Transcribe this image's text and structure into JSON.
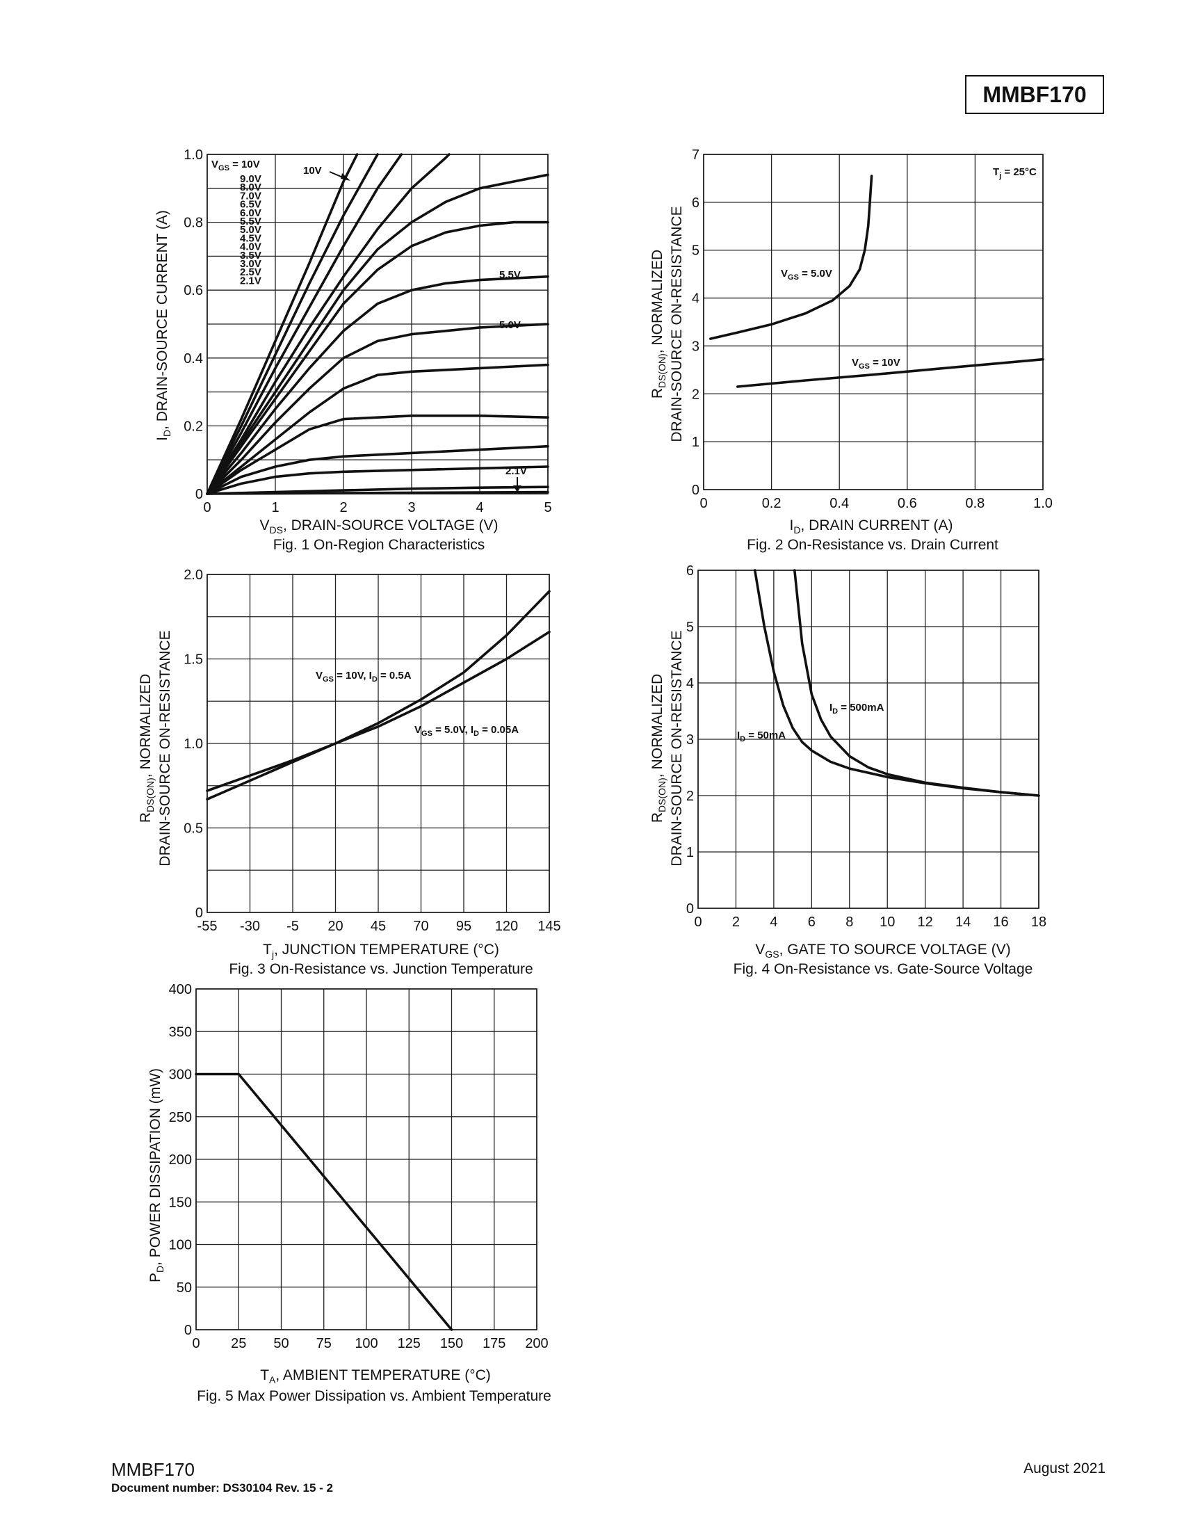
{
  "header": {
    "part_number": "MMBF170"
  },
  "footer": {
    "part_number": "MMBF170",
    "document_number": "Document number: DS30104 Rev. 15 - 2",
    "date": "August 2021"
  },
  "figures": {
    "fig1": {
      "caption": "Fig. 1  On-Region Characteristics",
      "xlabel_main": "V",
      "xlabel_sub": "DS",
      "xlabel_rest": ", DRAIN-SOURCE VOLTAGE (V)",
      "ylabel_main": "I",
      "ylabel_sub": "D",
      "ylabel_rest": ", DRAIN-SOURCE CURRENT (A)",
      "vgs_label_main": "V",
      "vgs_label_sub": "GS",
      "vgs_label_rest": " = 10V",
      "vgs_list": [
        "9.0V",
        "8.0V",
        "7.0V",
        "6.5V",
        "6.0V",
        "5.5V",
        "5.0V",
        "4.5V",
        "4.0V",
        "3.5V",
        "3.0V",
        "2.5V",
        "2.1V"
      ],
      "callout_10v": "10V",
      "callout_55v": "5.5V",
      "callout_50v": "5.0V",
      "callout_21v": "2.1V"
    },
    "fig2": {
      "caption": "Fig. 2  On-Resistance vs. Drain Current",
      "xlabel_main": "I",
      "xlabel_sub": "D",
      "xlabel_rest": ", DRAIN CURRENT (A)",
      "ylabel_line1_main": "R",
      "ylabel_line1_sub": "DS(ON)",
      "ylabel_line1_rest": ", NORMALIZED",
      "ylabel_line2": "DRAIN-SOURCE ON-RESISTANCE",
      "tj_main": "T",
      "tj_sub": "j",
      "tj_rest": " = 25°C",
      "label_5v_main": "V",
      "label_5v_sub": "GS",
      "label_5v_rest": " = 5.0V",
      "label_10v_main": "V",
      "label_10v_sub": "GS",
      "label_10v_rest": " = 10V"
    },
    "fig3": {
      "caption": "Fig. 3  On-Resistance vs. Junction Temperature",
      "xlabel_main": "T",
      "xlabel_sub": "j",
      "xlabel_rest": ", JUNCTION TEMPERATURE (°C)",
      "ylabel_line1_main": "R",
      "ylabel_line1_sub": "DS(ON)",
      "ylabel_line1_rest": ", NORMALIZED",
      "ylabel_line2": "DRAIN-SOURCE ON-RESISTANCE",
      "label_a_main": "V",
      "label_a_sub": "GS",
      "label_a_mid": " = 10V, I",
      "label_a_sub2": "D",
      "label_a_rest": " = 0.5A",
      "label_b_main": "V",
      "label_b_sub": "GS",
      "label_b_mid": " = 5.0V, I",
      "label_b_sub2": "D",
      "label_b_rest": " = 0.05A"
    },
    "fig4": {
      "caption": "Fig. 4  On-Resistance vs. Gate-Source Voltage",
      "xlabel_main": "V",
      "xlabel_sub": "GS",
      "xlabel_rest": ", GATE TO SOURCE VOLTAGE (V)",
      "ylabel_line1_main": "R",
      "ylabel_line1_sub": "DS(ON)",
      "ylabel_line1_rest": ", NORMALIZED",
      "ylabel_line2": "DRAIN-SOURCE ON-RESISTANCE",
      "label_500_main": "I",
      "label_500_sub": "D",
      "label_500_rest": " = 500mA",
      "label_50_main": "I",
      "label_50_sub": "D",
      "label_50_rest": " = 50mA"
    },
    "fig5": {
      "caption": "Fig. 5 Max Power Dissipation vs. Ambient Temperature",
      "xlabel_main": "T",
      "xlabel_sub": "A",
      "xlabel_rest": ", AMBIENT TEMPERATURE (°C)",
      "ylabel_main": "P",
      "ylabel_sub": "D",
      "ylabel_rest": ", POWER DISSIPATION (mW)"
    }
  },
  "chart_data": [
    {
      "id": "fig1",
      "type": "line",
      "title": "Fig. 1  On-Region Characteristics",
      "xlabel": "VDS, DRAIN-SOURCE VOLTAGE (V)",
      "ylabel": "ID, DRAIN-SOURCE CURRENT (A)",
      "xlim": [
        0,
        5
      ],
      "ylim": [
        0,
        1.0
      ],
      "xticks": [
        "0",
        "1",
        "2",
        "3",
        "4",
        "5"
      ],
      "yticks": [
        "0",
        "0.2",
        "0.4",
        "0.6",
        "0.8",
        "1.0"
      ],
      "grid": true,
      "series": [
        {
          "name": "10V",
          "x": [
            0,
            0.5,
            1,
            1.5,
            2,
            2.2
          ],
          "y": [
            0,
            0.22,
            0.45,
            0.68,
            0.92,
            1.0
          ]
        },
        {
          "name": "9.0V",
          "x": [
            0,
            0.5,
            1,
            1.5,
            2,
            2.5
          ],
          "y": [
            0,
            0.2,
            0.41,
            0.62,
            0.82,
            1.0
          ]
        },
        {
          "name": "8.0V",
          "x": [
            0,
            0.5,
            1,
            1.5,
            2,
            2.5,
            2.85
          ],
          "y": [
            0,
            0.18,
            0.37,
            0.55,
            0.73,
            0.9,
            1.0
          ]
        },
        {
          "name": "7.0V",
          "x": [
            0,
            0.5,
            1,
            1.5,
            2,
            2.5,
            3,
            3.5,
            3.55
          ],
          "y": [
            0,
            0.16,
            0.33,
            0.49,
            0.64,
            0.78,
            0.9,
            0.99,
            1.0
          ]
        },
        {
          "name": "6.5V",
          "x": [
            0,
            0.5,
            1,
            1.5,
            2,
            2.5,
            3,
            3.5,
            4,
            4.5,
            5
          ],
          "y": [
            0,
            0.15,
            0.3,
            0.45,
            0.6,
            0.72,
            0.8,
            0.86,
            0.9,
            0.92,
            0.94
          ]
        },
        {
          "name": "6.0V",
          "x": [
            0,
            0.5,
            1,
            1.5,
            2,
            2.5,
            3,
            3.5,
            4,
            4.5,
            5
          ],
          "y": [
            0,
            0.14,
            0.28,
            0.42,
            0.56,
            0.66,
            0.73,
            0.77,
            0.79,
            0.8,
            0.8
          ]
        },
        {
          "name": "5.5V",
          "x": [
            0,
            0.5,
            1,
            1.5,
            2,
            2.5,
            3,
            3.5,
            4,
            4.5,
            5
          ],
          "y": [
            0,
            0.12,
            0.25,
            0.37,
            0.48,
            0.56,
            0.6,
            0.62,
            0.63,
            0.635,
            0.64
          ]
        },
        {
          "name": "5.0V",
          "x": [
            0,
            0.5,
            1,
            1.5,
            2,
            2.5,
            3,
            3.5,
            4,
            4.5,
            5
          ],
          "y": [
            0,
            0.1,
            0.21,
            0.31,
            0.4,
            0.45,
            0.47,
            0.48,
            0.49,
            0.495,
            0.5
          ]
        },
        {
          "name": "4.5V",
          "x": [
            0,
            0.5,
            1,
            1.5,
            2,
            2.5,
            3,
            3.5,
            4,
            4.5,
            5
          ],
          "y": [
            0,
            0.08,
            0.16,
            0.24,
            0.31,
            0.35,
            0.36,
            0.365,
            0.37,
            0.375,
            0.38
          ]
        },
        {
          "name": "4.0V",
          "x": [
            0,
            0.5,
            1,
            1.5,
            2,
            3,
            4,
            5
          ],
          "y": [
            0,
            0.07,
            0.13,
            0.19,
            0.22,
            0.23,
            0.23,
            0.225
          ]
        },
        {
          "name": "3.5V",
          "x": [
            0,
            0.5,
            1,
            1.5,
            2,
            3,
            4,
            5
          ],
          "y": [
            0,
            0.05,
            0.08,
            0.1,
            0.11,
            0.12,
            0.13,
            0.14
          ]
        },
        {
          "name": "3.0V",
          "x": [
            0,
            0.5,
            1,
            1.5,
            2,
            3,
            4,
            5
          ],
          "y": [
            0,
            0.03,
            0.05,
            0.06,
            0.065,
            0.07,
            0.075,
            0.08
          ]
        },
        {
          "name": "2.5V",
          "x": [
            0,
            1,
            2,
            3,
            4,
            5
          ],
          "y": [
            0,
            0.005,
            0.01,
            0.015,
            0.018,
            0.02
          ]
        },
        {
          "name": "2.1V",
          "x": [
            0,
            5
          ],
          "y": [
            0,
            0.005
          ]
        }
      ]
    },
    {
      "id": "fig2",
      "type": "line",
      "title": "Fig. 2  On-Resistance vs. Drain Current",
      "xlabel": "ID, DRAIN CURRENT (A)",
      "ylabel": "RDS(ON), NORMALIZED DRAIN-SOURCE ON-RESISTANCE",
      "xlim": [
        0,
        1.0
      ],
      "ylim": [
        0,
        7
      ],
      "xticks": [
        "0",
        "0.2",
        "0.4",
        "0.6",
        "0.8",
        "1.0"
      ],
      "yticks": [
        "0",
        "1",
        "2",
        "3",
        "4",
        "5",
        "6",
        "7"
      ],
      "grid": true,
      "annotation": "Tj = 25°C",
      "series": [
        {
          "name": "VGS = 5.0V",
          "x": [
            0.02,
            0.1,
            0.2,
            0.3,
            0.38,
            0.43,
            0.46,
            0.475,
            0.485,
            0.49,
            0.495
          ],
          "y": [
            3.15,
            3.28,
            3.45,
            3.68,
            3.95,
            4.25,
            4.6,
            5.0,
            5.5,
            6.0,
            6.55
          ]
        },
        {
          "name": "VGS = 10V",
          "x": [
            0.1,
            0.3,
            0.5,
            0.7,
            1.0
          ],
          "y": [
            2.15,
            2.28,
            2.4,
            2.53,
            2.72
          ]
        }
      ]
    },
    {
      "id": "fig3",
      "type": "line",
      "title": "Fig. 3  On-Resistance vs. Junction Temperature",
      "xlabel": "Tj, JUNCTION TEMPERATURE (°C)",
      "ylabel": "RDS(ON), NORMALIZED DRAIN-SOURCE ON-RESISTANCE",
      "xlim": [
        -55,
        145
      ],
      "ylim": [
        0,
        2.0
      ],
      "xticks": [
        "-55",
        "-30",
        "-5",
        "20",
        "45",
        "70",
        "95",
        "120",
        "145"
      ],
      "yticks": [
        "0",
        "0.5",
        "1.0",
        "1.5",
        "2.0"
      ],
      "grid": true,
      "series": [
        {
          "name": "VGS = 10V, ID = 0.5A",
          "x": [
            -55,
            -30,
            -5,
            20,
            45,
            70,
            95,
            120,
            145
          ],
          "y": [
            0.67,
            0.78,
            0.89,
            1.0,
            1.12,
            1.26,
            1.42,
            1.64,
            1.9
          ]
        },
        {
          "name": "VGS = 5.0V, ID = 0.05A",
          "x": [
            -55,
            -30,
            -5,
            20,
            45,
            70,
            95,
            120,
            145
          ],
          "y": [
            0.72,
            0.81,
            0.9,
            1.0,
            1.1,
            1.22,
            1.36,
            1.5,
            1.66
          ]
        }
      ]
    },
    {
      "id": "fig4",
      "type": "line",
      "title": "Fig. 4  On-Resistance vs. Gate-Source Voltage",
      "xlabel": "VGS, GATE TO SOURCE VOLTAGE (V)",
      "ylabel": "RDS(ON), NORMALIZED DRAIN-SOURCE ON-RESISTANCE",
      "xlim": [
        0,
        18
      ],
      "ylim": [
        0,
        6
      ],
      "xticks": [
        "0",
        "2",
        "4",
        "6",
        "8",
        "10",
        "12",
        "14",
        "16",
        "18"
      ],
      "yticks": [
        "0",
        "1",
        "2",
        "3",
        "4",
        "5",
        "6"
      ],
      "grid": true,
      "series": [
        {
          "name": "ID = 500mA",
          "x": [
            5.1,
            5.5,
            6,
            6.5,
            7,
            8,
            9,
            10,
            12,
            14,
            16,
            18
          ],
          "y": [
            6.0,
            4.7,
            3.8,
            3.35,
            3.05,
            2.7,
            2.5,
            2.38,
            2.23,
            2.14,
            2.06,
            2.0
          ]
        },
        {
          "name": "ID = 50mA",
          "x": [
            3.0,
            3.5,
            4,
            4.5,
            5,
            5.5,
            6,
            7,
            8,
            10,
            12,
            14,
            16,
            18
          ],
          "y": [
            6.0,
            5.0,
            4.2,
            3.6,
            3.2,
            2.95,
            2.8,
            2.6,
            2.48,
            2.33,
            2.22,
            2.13,
            2.06,
            2.0
          ]
        }
      ]
    },
    {
      "id": "fig5",
      "type": "line",
      "title": "Fig. 5 Max Power Dissipation vs. Ambient Temperature",
      "xlabel": "TA, AMBIENT TEMPERATURE (°C)",
      "ylabel": "PD, POWER DISSIPATION (mW)",
      "xlim": [
        0,
        200
      ],
      "ylim": [
        0,
        400
      ],
      "xticks": [
        "0",
        "25",
        "50",
        "75",
        "100",
        "125",
        "150",
        "175",
        "200"
      ],
      "yticks": [
        "0",
        "50",
        "100",
        "150",
        "200",
        "250",
        "300",
        "350",
        "400"
      ],
      "grid": true,
      "series": [
        {
          "name": "PD",
          "x": [
            0,
            25,
            150
          ],
          "y": [
            300,
            300,
            0
          ]
        }
      ]
    }
  ]
}
